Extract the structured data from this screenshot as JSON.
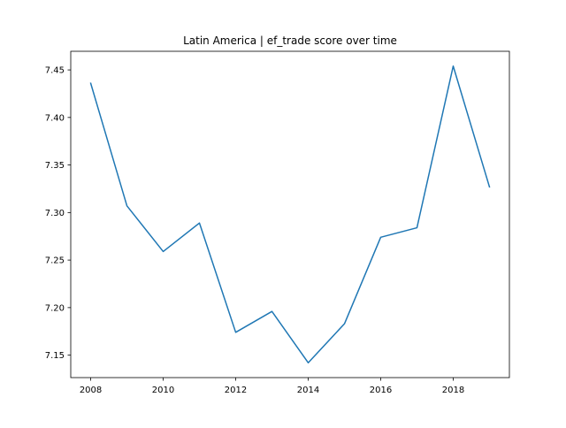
{
  "chart_data": {
    "type": "line",
    "title": "Latin America | ef_trade score over time",
    "xlabel": "",
    "ylabel": "",
    "x": [
      2008,
      2009,
      2010,
      2011,
      2012,
      2013,
      2014,
      2015,
      2016,
      2017,
      2018,
      2019
    ],
    "series": [
      {
        "values": [
          7.436,
          7.307,
          7.259,
          7.289,
          7.174,
          7.196,
          7.142,
          7.183,
          7.274,
          7.284,
          7.454,
          7.327
        ],
        "color": "#1f77b4"
      }
    ],
    "xlim": [
      2007.45,
      2019.55
    ],
    "ylim": [
      7.1264,
      7.4696
    ],
    "x_ticks": [
      2008,
      2010,
      2012,
      2014,
      2016,
      2018
    ],
    "x_tick_labels": [
      "2008",
      "2010",
      "2012",
      "2014",
      "2016",
      "2018"
    ],
    "y_ticks": [
      7.15,
      7.2,
      7.25,
      7.3,
      7.35,
      7.4,
      7.45
    ],
    "y_tick_labels": [
      "7.15",
      "7.20",
      "7.25",
      "7.30",
      "7.35",
      "7.40",
      "7.45"
    ],
    "grid": false,
    "legend": "none"
  }
}
